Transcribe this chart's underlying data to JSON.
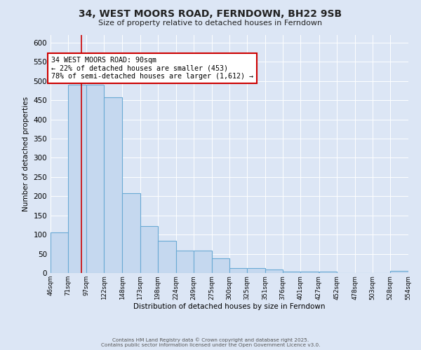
{
  "title": "34, WEST MOORS ROAD, FERNDOWN, BH22 9SB",
  "subtitle": "Size of property relative to detached houses in Ferndown",
  "xlabel": "Distribution of detached houses by size in Ferndown",
  "ylabel": "Number of detached properties",
  "bin_edges": [
    46,
    71,
    97,
    122,
    148,
    173,
    198,
    224,
    249,
    275,
    300,
    325,
    351,
    376,
    401,
    427,
    452,
    478,
    503,
    528,
    554
  ],
  "bin_labels": [
    "46sqm",
    "71sqm",
    "97sqm",
    "122sqm",
    "148sqm",
    "173sqm",
    "198sqm",
    "224sqm",
    "249sqm",
    "275sqm",
    "300sqm",
    "325sqm",
    "351sqm",
    "376sqm",
    "401sqm",
    "427sqm",
    "452sqm",
    "478sqm",
    "503sqm",
    "528sqm",
    "554sqm"
  ],
  "values": [
    105,
    490,
    490,
    457,
    208,
    122,
    83,
    58,
    58,
    38,
    13,
    13,
    10,
    4,
    3,
    3,
    0,
    0,
    0,
    5
  ],
  "bar_color": "#c5d8ef",
  "bar_edge_color": "#6aaad4",
  "property_size": 90,
  "vline_color": "#cc0000",
  "annotation_text": "34 WEST MOORS ROAD: 90sqm\n← 22% of detached houses are smaller (453)\n78% of semi-detached houses are larger (1,612) →",
  "annotation_box_color": "#ffffff",
  "annotation_box_edge_color": "#cc0000",
  "ylim": [
    0,
    620
  ],
  "yticks": [
    0,
    50,
    100,
    150,
    200,
    250,
    300,
    350,
    400,
    450,
    500,
    550,
    600
  ],
  "background_color": "#dce6f5",
  "grid_color": "#ffffff",
  "footer_line1": "Contains HM Land Registry data © Crown copyright and database right 2025.",
  "footer_line2": "Contains public sector information licensed under the Open Government Licence v3.0."
}
